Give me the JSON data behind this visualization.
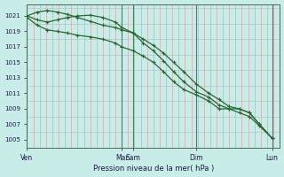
{
  "title": "Pression niveau de la mer( hPa )",
  "bg_color": "#c8ece8",
  "line_color": "#2a6632",
  "ylim": [
    1004.0,
    1022.5
  ],
  "xlim": [
    0,
    1.0
  ],
  "ytick_vals": [
    1005,
    1007,
    1009,
    1011,
    1013,
    1015,
    1017,
    1019,
    1021
  ],
  "xtick_positions": [
    0.0,
    0.375,
    0.42,
    0.67,
    0.97
  ],
  "xtick_labels": [
    "Ven",
    "Mar",
    "Sam",
    "Dim",
    "Lun"
  ],
  "day_vlines": [
    0.0,
    0.375,
    0.42,
    0.67,
    0.97
  ],
  "series1_x": [
    0.0,
    0.04,
    0.08,
    0.12,
    0.16,
    0.2,
    0.25,
    0.3,
    0.35,
    0.375,
    0.42,
    0.46,
    0.5,
    0.54,
    0.58,
    0.62,
    0.67,
    0.72,
    0.76,
    0.8,
    0.84,
    0.88,
    0.92,
    0.97
  ],
  "series1_y": [
    1021.0,
    1021.5,
    1021.7,
    1021.5,
    1021.2,
    1020.8,
    1020.3,
    1019.8,
    1019.5,
    1019.2,
    1018.8,
    1018.0,
    1017.2,
    1016.2,
    1015.0,
    1013.8,
    1012.2,
    1011.0,
    1010.2,
    1009.3,
    1009.0,
    1008.5,
    1007.0,
    1005.2
  ],
  "series2_x": [
    0.0,
    0.04,
    0.08,
    0.12,
    0.16,
    0.2,
    0.25,
    0.3,
    0.35,
    0.375,
    0.42,
    0.46,
    0.5,
    0.54,
    0.58,
    0.62,
    0.67,
    0.72,
    0.76,
    0.8,
    0.84,
    0.88,
    0.92,
    0.97
  ],
  "series2_y": [
    1021.0,
    1020.5,
    1020.2,
    1020.5,
    1020.8,
    1021.0,
    1021.1,
    1020.8,
    1020.2,
    1019.5,
    1018.8,
    1017.5,
    1016.5,
    1015.2,
    1013.8,
    1012.5,
    1011.2,
    1010.5,
    1009.5,
    1009.0,
    1009.0,
    1008.5,
    1007.0,
    1005.2
  ],
  "series3_x": [
    0.0,
    0.04,
    0.08,
    0.12,
    0.16,
    0.2,
    0.25,
    0.3,
    0.35,
    0.375,
    0.42,
    0.46,
    0.5,
    0.54,
    0.58,
    0.62,
    0.67,
    0.72,
    0.76,
    0.8,
    0.84,
    0.88,
    0.92,
    0.97
  ],
  "series3_y": [
    1020.8,
    1019.8,
    1019.2,
    1019.0,
    1018.8,
    1018.5,
    1018.3,
    1018.0,
    1017.5,
    1017.0,
    1016.5,
    1015.8,
    1015.0,
    1013.8,
    1012.5,
    1011.5,
    1010.8,
    1010.0,
    1009.0,
    1009.0,
    1008.5,
    1008.0,
    1006.8,
    1005.2
  ]
}
